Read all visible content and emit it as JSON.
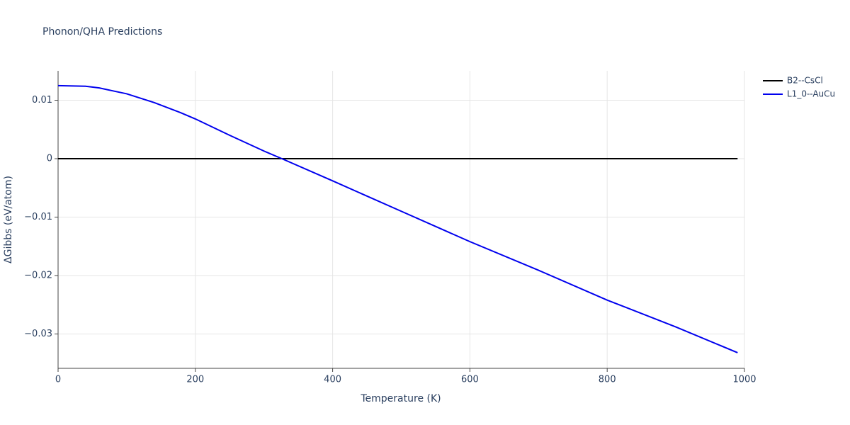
{
  "chart_data": {
    "type": "line",
    "title": "Phonon/QHA Predictions",
    "xlabel": "Temperature (K)",
    "ylabel": "ΔGibbs (eV/atom)",
    "xlim": [
      0,
      1000
    ],
    "xticks": [
      0,
      200,
      400,
      600,
      800,
      1000
    ],
    "ylim": [
      -0.03588,
      0.01503
    ],
    "yticks": [
      {
        "value": -0.03,
        "label": "−0.03"
      },
      {
        "value": -0.02,
        "label": "−0.02"
      },
      {
        "value": -0.01,
        "label": "−0.01"
      },
      0,
      0.01
    ],
    "grid": true,
    "legend": "outside-right",
    "series": [
      {
        "name": "B2--CsCl",
        "color": "#000000",
        "x": [
          0,
          990
        ],
        "values": [
          0,
          0
        ]
      },
      {
        "name": "L1_0--AuCu",
        "color": "#0000ee",
        "x": [
          0,
          40,
          60,
          80,
          100,
          140,
          180,
          200,
          250,
          300,
          326,
          400,
          500,
          600,
          700,
          800,
          900,
          990
        ],
        "values": [
          0.0125,
          0.0124,
          0.0121,
          0.0116,
          0.0111,
          0.0096,
          0.0078,
          0.0068,
          0.004,
          0.0013,
          0,
          -0.0038,
          -0.009,
          -0.0142,
          -0.0191,
          -0.0242,
          -0.0288,
          -0.0332
        ]
      }
    ]
  }
}
